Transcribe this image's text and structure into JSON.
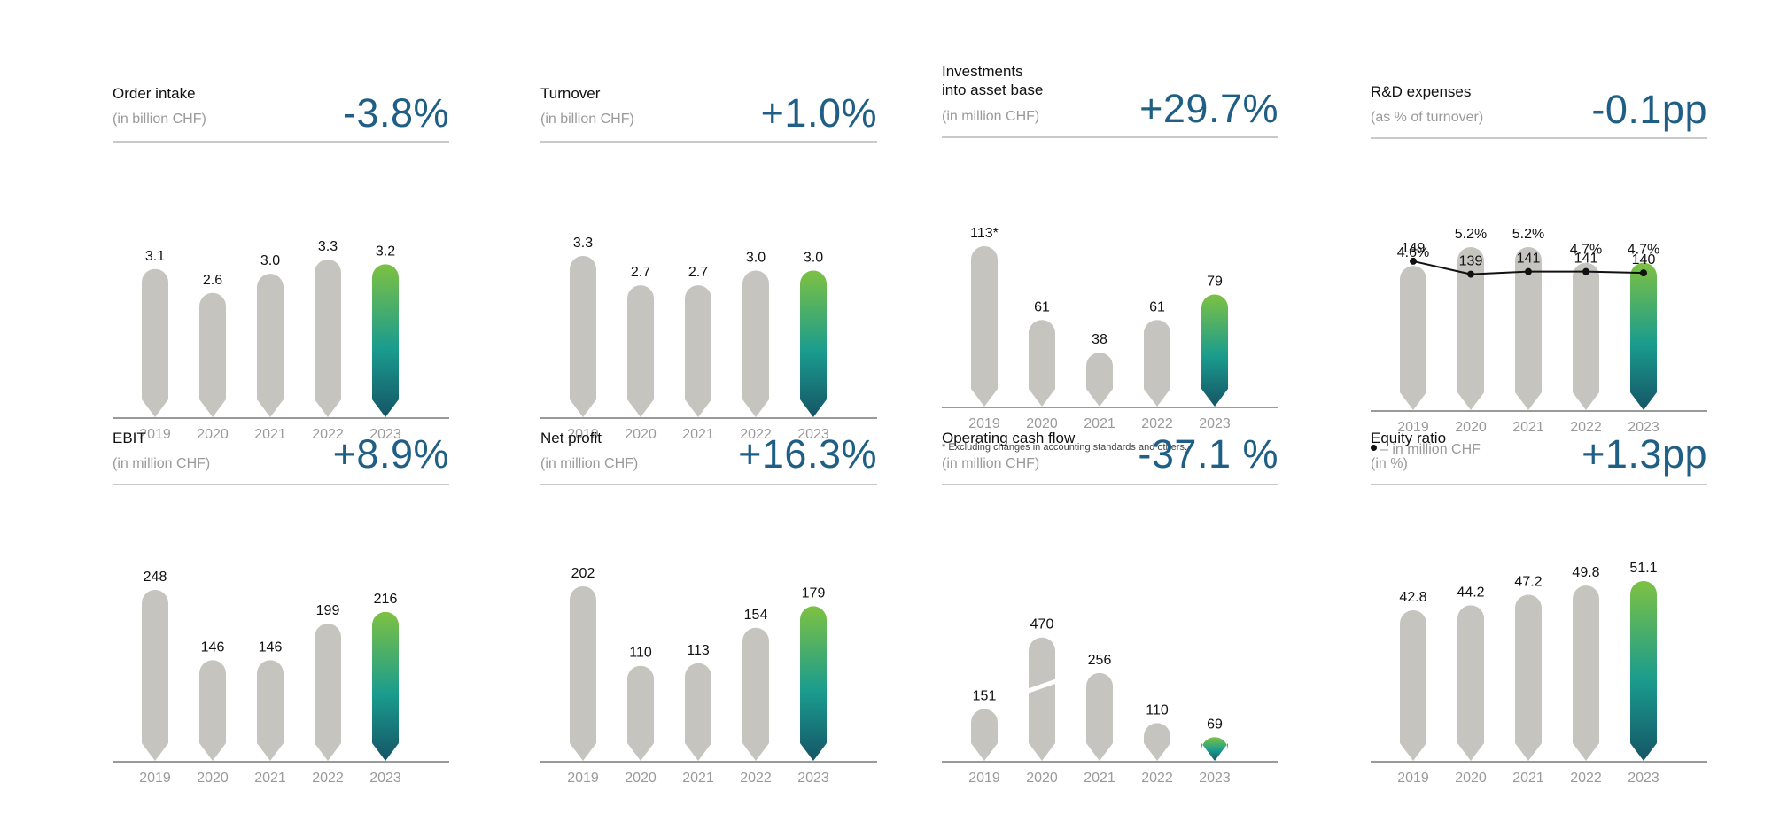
{
  "colors": {
    "bar_gray": "#c5c4bf",
    "grad_top": "#7dc142",
    "grad_mid": "#1a9c8e",
    "grad_bottom": "#155566",
    "change_text": "#1f5f86",
    "axis": "#9a9a9a",
    "rule": "#c9c9c9"
  },
  "chart_data": [
    {
      "type": "bar",
      "title": "Order intake",
      "subtitle": "(in billion CHF)",
      "change": "-3.8%",
      "categories": [
        "2019",
        "2020",
        "2021",
        "2022",
        "2023"
      ],
      "values": [
        3.1,
        2.6,
        3.0,
        3.3,
        3.2
      ],
      "labels": [
        "3.1",
        "2.6",
        "3.0",
        "3.3",
        "3.2"
      ],
      "highlight_last": true
    },
    {
      "type": "bar",
      "title": "Turnover",
      "subtitle": "(in billion CHF)",
      "change": "+1.0%",
      "categories": [
        "2019",
        "2020",
        "2021",
        "2022",
        "2023"
      ],
      "values": [
        3.3,
        2.7,
        2.7,
        3.0,
        3.0
      ],
      "labels": [
        "3.3",
        "2.7",
        "2.7",
        "3.0",
        "3.0"
      ],
      "highlight_last": true
    },
    {
      "type": "bar",
      "title": "Investments\ninto asset base",
      "subtitle": "(in million CHF)",
      "change": "+29.7%",
      "categories": [
        "2019",
        "2020",
        "2021",
        "2022",
        "2023"
      ],
      "values": [
        113,
        61,
        38,
        61,
        79
      ],
      "labels": [
        "113*",
        "61",
        "38",
        "61",
        "79"
      ],
      "highlight_last": true,
      "footnote": "* Excluding changes in accounting standards and others."
    },
    {
      "type": "bar",
      "title": "R&D expenses",
      "subtitle": "(as % of turnover)",
      "change": "-0.1pp",
      "categories": [
        "2019",
        "2020",
        "2021",
        "2022",
        "2023"
      ],
      "values": [
        4.6,
        5.2,
        5.2,
        4.7,
        4.7
      ],
      "labels": [
        "4.6%",
        "5.2%",
        "5.2%",
        "4.7%",
        "4.7%"
      ],
      "highlight_last": true,
      "line_series": {
        "name": "– in million CHF",
        "values": [
          149,
          139,
          141,
          141,
          140
        ],
        "labels": [
          "149",
          "139",
          "141",
          "141",
          "140"
        ]
      }
    },
    {
      "type": "bar",
      "title": "EBIT",
      "subtitle": "(in million CHF)",
      "change": "+8.9%",
      "categories": [
        "2019",
        "2020",
        "2021",
        "2022",
        "2023"
      ],
      "values": [
        248,
        146,
        146,
        199,
        216
      ],
      "labels": [
        "248",
        "146",
        "146",
        "199",
        "216"
      ],
      "highlight_last": true
    },
    {
      "type": "bar",
      "title": "Net profit",
      "subtitle": "(in million CHF)",
      "change": "+16.3%",
      "categories": [
        "2019",
        "2020",
        "2021",
        "2022",
        "2023"
      ],
      "values": [
        202,
        110,
        113,
        154,
        179
      ],
      "labels": [
        "202",
        "110",
        "113",
        "154",
        "179"
      ],
      "highlight_last": true
    },
    {
      "type": "bar",
      "title": "Operating cash flow",
      "subtitle": "(in million CHF)",
      "change": "-37.1 %",
      "categories": [
        "2019",
        "2020",
        "2021",
        "2022",
        "2023"
      ],
      "values": [
        151,
        470,
        256,
        110,
        69
      ],
      "labels": [
        "151",
        "470",
        "256",
        "110",
        "69"
      ],
      "highlight_last": true,
      "axis_break_bar": 1
    },
    {
      "type": "bar",
      "title": "Equity ratio",
      "subtitle": "(in %)",
      "change": "+1.3pp",
      "categories": [
        "2019",
        "2020",
        "2021",
        "2022",
        "2023"
      ],
      "values": [
        42.8,
        44.2,
        47.2,
        49.8,
        51.1
      ],
      "labels": [
        "42.8",
        "44.2",
        "47.2",
        "49.8",
        "51.1"
      ],
      "highlight_last": true
    }
  ]
}
